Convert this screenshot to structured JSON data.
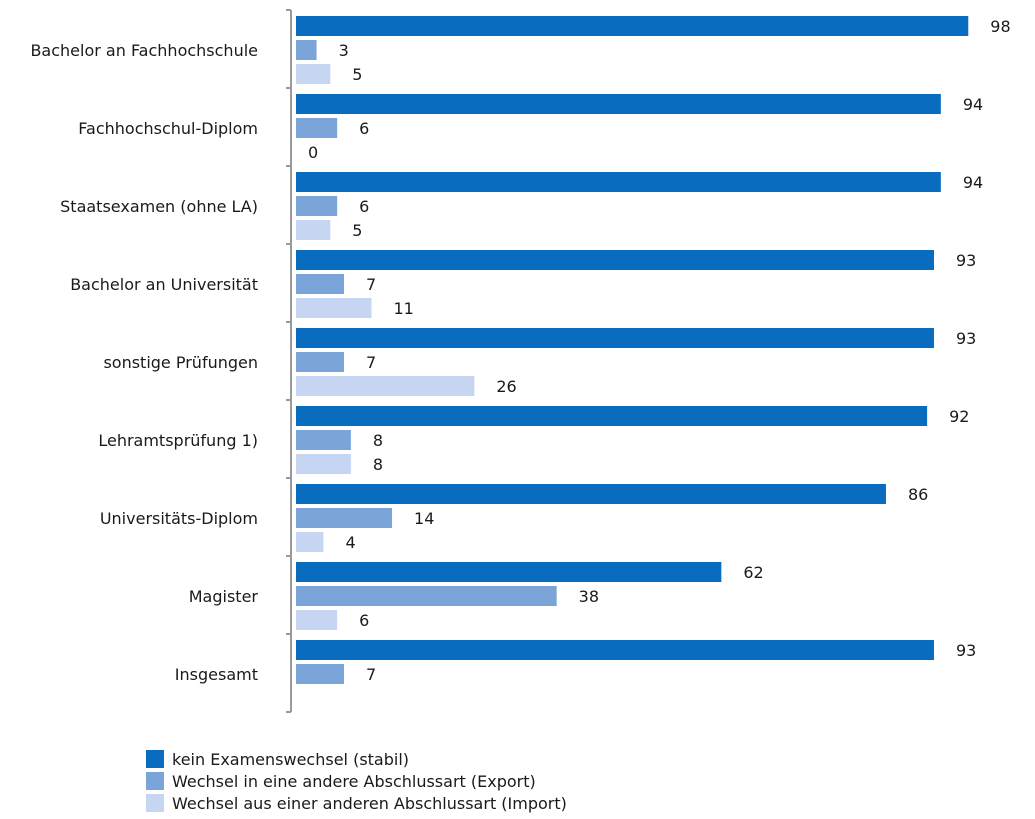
{
  "chart_data": {
    "type": "bar",
    "orientation": "horizontal",
    "categories": [
      "Bachelor an Fachhochschule",
      "Fachhochschul-Diplom",
      "Staatsexamen (ohne LA)",
      "Bachelor an Universität",
      "sonstige Prüfungen",
      "Lehramtsprüfung 1)",
      "Universitäts-Diplom",
      "Magister",
      "Insgesamt"
    ],
    "series": [
      {
        "name": "kein Examenswechsel (stabil)",
        "color": "#0a6cbf",
        "values": [
          98,
          94,
          94,
          93,
          93,
          92,
          86,
          62,
          93
        ]
      },
      {
        "name": "Wechsel in eine andere Abschlussart (Export)",
        "color": "#7ba5d9",
        "values": [
          3,
          6,
          6,
          7,
          7,
          8,
          14,
          38,
          7
        ]
      },
      {
        "name": "Wechsel aus einer anderen Abschlussart (Import)",
        "color": "#c6d6f2",
        "values": [
          5,
          0,
          5,
          11,
          26,
          8,
          4,
          6,
          null
        ]
      }
    ],
    "legend_position": "bottom-left",
    "grid": false,
    "xlim": [
      0,
      100
    ]
  }
}
